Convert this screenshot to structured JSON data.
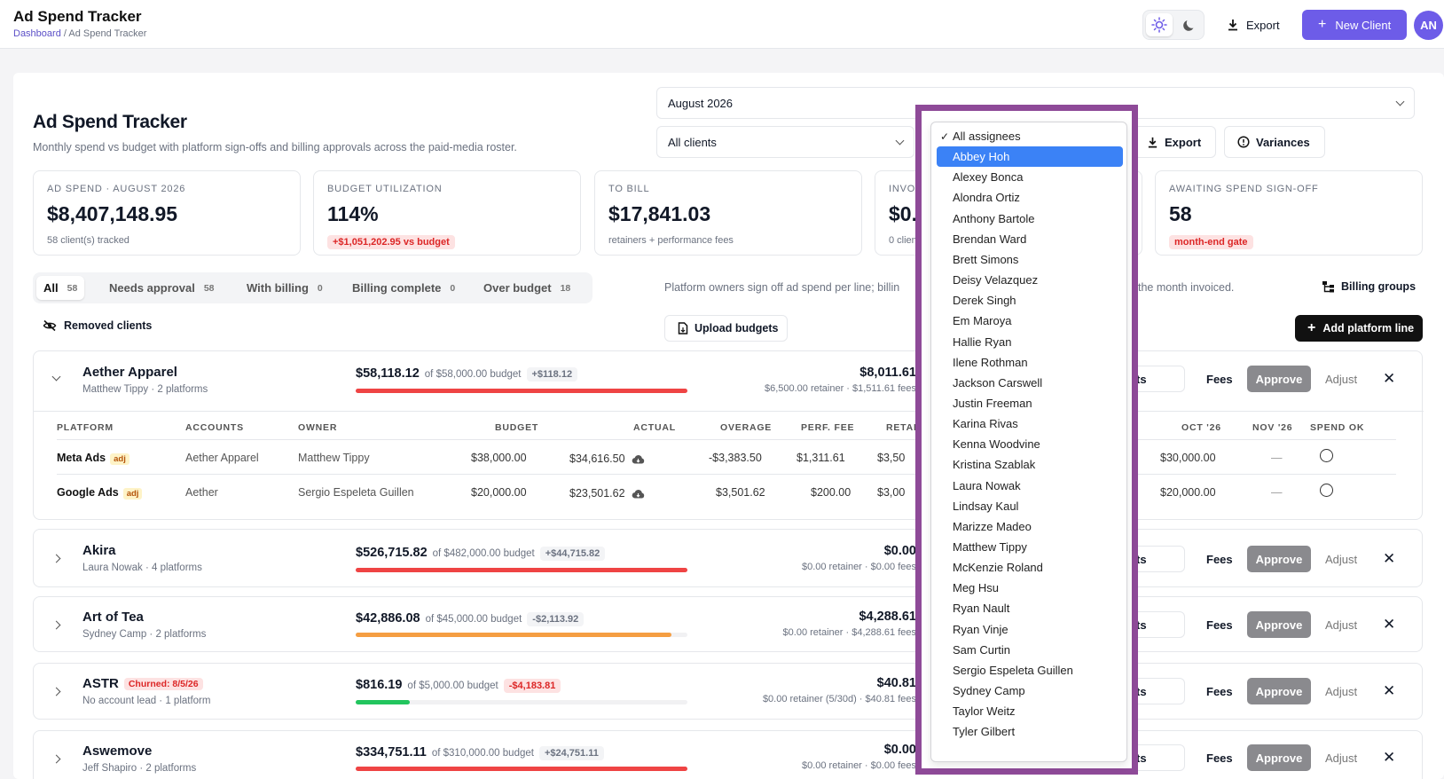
{
  "header": {
    "title": "Ad Spend Tracker",
    "breadcrumb_root": "Dashboard",
    "breadcrumb_sep": " / ",
    "breadcrumb_current": "Ad Spend Tracker",
    "export_label": "Export",
    "new_client_label": "New Client",
    "avatar_initials": "AN"
  },
  "page": {
    "title": "Ad Spend Tracker",
    "subtitle": "Monthly spend vs budget with platform sign-offs and billing approvals across the paid-media roster.",
    "month": "August 2026",
    "client_filter": "All clients",
    "export_label": "Export",
    "variances_label": "Variances"
  },
  "stats": [
    {
      "label": "Ad spend · August 2026",
      "value": "$8,407,148.95",
      "note": "58 client(s) tracked"
    },
    {
      "label": "Budget utilization",
      "value": "114%",
      "pill": "+$1,051,202.95 vs budget"
    },
    {
      "label": "To bill",
      "value": "$17,841.03",
      "note": "retainers + performance fees"
    },
    {
      "label": "Invoi",
      "value": "$0.",
      "note": "0 clien"
    },
    {
      "label": "Awaiting spend sign-off",
      "value": "58",
      "pill": "month-end gate"
    }
  ],
  "tabs": [
    {
      "label": "All",
      "count": "58"
    },
    {
      "label": "Needs approval",
      "count": "58"
    },
    {
      "label": "With billing",
      "count": "0"
    },
    {
      "label": "Billing complete",
      "count": "0"
    },
    {
      "label": "Over budget",
      "count": "18"
    }
  ],
  "hint_left": "Platform owners sign off ad spend per line; billin",
  "hint_right": "the month invoiced.",
  "billing_groups_label": "Billing groups",
  "removed_clients_label": "Removed clients",
  "upload_budgets_label": "Upload budgets",
  "add_platform_line_label": "Add platform line",
  "actions": {
    "budgets": "budgets",
    "fees": "Fees",
    "approve": "Approve",
    "adjust": "Adjust",
    "close": "✕"
  },
  "clients": [
    {
      "name": "Aether Apparel",
      "sub": "Matthew Tippy · 2 platforms",
      "spend": "$58,118.12",
      "of": "of $58,000.00 budget",
      "var": "+$118.12",
      "utilization": 1.0,
      "bar_color": "#ef4444",
      "bill": "$8,011.61",
      "bill_sub": "$6,500.00 retainer · $1,511.61 fees"
    },
    {
      "name": "Akira",
      "sub": "Laura Nowak · 4 platforms",
      "spend": "$526,715.82",
      "of": "of $482,000.00 budget",
      "var": "+$44,715.82",
      "utilization": 1.0,
      "bar_color": "#ef4444",
      "bill": "$0.00",
      "bill_sub": "$0.00 retainer · $0.00 fees"
    },
    {
      "name": "Art of Tea",
      "sub": "Sydney Camp · 2 platforms",
      "spend": "$42,886.08",
      "of": "of $45,000.00 budget",
      "var": "-$2,113.92",
      "utilization": 0.953,
      "bar_color": "#f59e42",
      "bill": "$4,288.61",
      "bill_sub": "$0.00 retainer · $4,288.61 fees"
    },
    {
      "name": "ASTR",
      "churn": "Churned: 8/5/26",
      "sub": "No account lead · 1 platform",
      "spend": "$816.19",
      "of": "of $5,000.00 budget",
      "var": "-$4,183.81",
      "utilization": 0.163,
      "bar_color": "#22c55e",
      "bill": "$40.81",
      "bill_sub": "$0.00 retainer (5/30d) · $40.81 fees"
    },
    {
      "name": "Aswemove",
      "sub": "Jeff Shapiro · 2 platforms",
      "spend": "$334,751.11",
      "of": "of $310,000.00 budget",
      "var": "+$24,751.11",
      "utilization": 1.0,
      "bar_color": "#ef4444",
      "bill": "$0.00",
      "bill_sub": "$0.00 retainer · $0.00 fees"
    }
  ],
  "table": {
    "headers": {
      "platform": "Platform",
      "accounts": "Accounts",
      "owner": "Owner",
      "budget": "Budget",
      "actual": "Actual",
      "overage": "Overage",
      "perf_fee": "Perf. fee",
      "retainer": "Retai",
      "oct": "Oct '26",
      "nov": "Nov '26",
      "spend_ok": "Spend OK"
    },
    "rows": [
      {
        "platform": "Meta Ads",
        "adj": "adj",
        "accounts": "Aether Apparel",
        "owner": "Matthew Tippy",
        "budget": "$38,000.00",
        "actual": "$34,616.50",
        "overage": "-$3,383.50",
        "perf_fee": "$1,311.61",
        "retainer": "$3,50",
        "oct": "$30,000.00",
        "nov": "—"
      },
      {
        "platform": "Google Ads",
        "adj": "adj",
        "accounts": "Aether",
        "owner": "Sergio Espeleta Guillen",
        "budget": "$20,000.00",
        "actual": "$23,501.62",
        "overage": "$3,501.62",
        "perf_fee": "$200.00",
        "retainer": "$3,00",
        "oct": "$20,000.00",
        "nov": "—"
      }
    ]
  },
  "assignee_dropdown": {
    "selected": "All assignees",
    "highlighted": "Abbey Hoh",
    "options": [
      "All assignees",
      "Abbey Hoh",
      "Alexey Bonca",
      "Alondra Ortiz",
      "Anthony Bartole",
      "Brendan Ward",
      "Brett Simons",
      "Deisy Velazquez",
      "Derek Singh",
      "Em Maroya",
      "Hallie Ryan",
      "Ilene Rothman",
      "Jackson Carswell",
      "Justin Freeman",
      "Karina Rivas",
      "Kenna Woodvine",
      "Kristina Szablak",
      "Laura Nowak",
      "Lindsay Kaul",
      "Marizze Madeo",
      "Matthew Tippy",
      "McKenzie Roland",
      "Meg Hsu",
      "Ryan Nault",
      "Ryan Vinje",
      "Sam Curtin",
      "Sergio Espeleta Guillen",
      "Sydney Camp",
      "Taylor Weitz",
      "Tyler Gilbert"
    ]
  },
  "colors": {
    "accent": "#6d5ce8",
    "highlight_border": "#8e4a98",
    "over": "#ef4444",
    "near": "#f59e42",
    "under": "#22c55e"
  }
}
